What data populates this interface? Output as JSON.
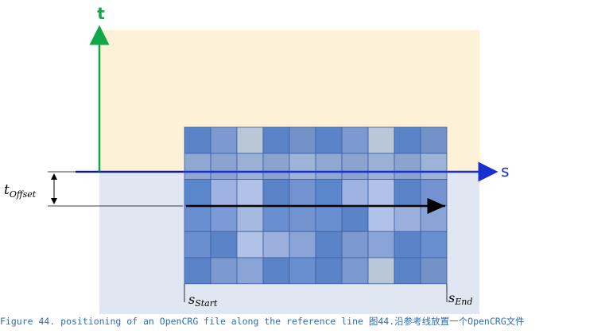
{
  "axes": {
    "t_label": "t",
    "s_label": "s"
  },
  "offset_label": {
    "main": "t",
    "sub": "Offset"
  },
  "start_label": {
    "main": "s",
    "sub": "Start"
  },
  "end_label": {
    "main": "s",
    "sub": "End"
  },
  "caption": "Figure 44. positioning of an OpenCRG file along the reference line 图44.沿参考线放置一个OpenCRG文件"
}
